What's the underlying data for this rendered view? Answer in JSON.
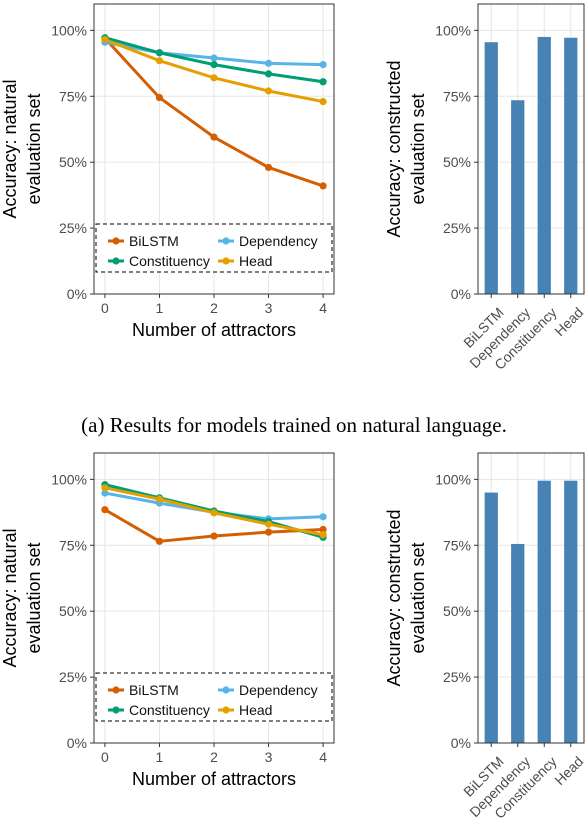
{
  "captions": {
    "a": "(a) Results for models trained on natural language."
  },
  "colors": {
    "BiLSTM": "#D55E00",
    "Dependency": "#56B4E9",
    "Constituency": "#009E73",
    "Head": "#E69F00",
    "bar": "#4682B4"
  },
  "chart_data": [
    {
      "type": "line",
      "panel": "a-left",
      "xlabel": "Number of attractors",
      "ylabel_lines": [
        "Accuracy: natural",
        "evaluation set"
      ],
      "x": [
        0,
        1,
        2,
        3,
        4
      ],
      "xlim": [
        -0.2,
        4.2
      ],
      "ylim": [
        0,
        1.1
      ],
      "yticks": [
        0,
        0.25,
        0.5,
        0.75,
        1.0
      ],
      "ytick_labels": [
        "0%",
        "25%",
        "50%",
        "75%",
        "100%"
      ],
      "xtick_labels": [
        "0",
        "1",
        "2",
        "3",
        "4"
      ],
      "grid": true,
      "legend_placement": "bottom, inside plot, dashed box, 2 columns",
      "series": [
        {
          "name": "BiLSTM",
          "values": [
            0.97,
            0.745,
            0.595,
            0.48,
            0.41
          ]
        },
        {
          "name": "Dependency",
          "values": [
            0.955,
            0.915,
            0.895,
            0.875,
            0.87
          ]
        },
        {
          "name": "Constituency",
          "values": [
            0.972,
            0.915,
            0.87,
            0.835,
            0.805
          ]
        },
        {
          "name": "Head",
          "values": [
            0.965,
            0.885,
            0.82,
            0.77,
            0.73
          ]
        }
      ]
    },
    {
      "type": "bar",
      "panel": "a-right",
      "ylabel_lines": [
        "Accuracy: constructed",
        "evaluation set"
      ],
      "categories": [
        "BiLSTM",
        "Dependency",
        "Constituency",
        "Head"
      ],
      "values": [
        0.955,
        0.735,
        0.975,
        0.972
      ],
      "ylim": [
        0,
        1.1
      ],
      "yticks": [
        0,
        0.25,
        0.5,
        0.75,
        1.0
      ],
      "ytick_labels": [
        "0%",
        "25%",
        "50%",
        "75%",
        "100%"
      ],
      "grid": true
    },
    {
      "type": "line",
      "panel": "b-left",
      "xlabel": "Number of attractors",
      "ylabel_lines": [
        "Accuracy: natural",
        "evaluation set"
      ],
      "x": [
        0,
        1,
        2,
        3,
        4
      ],
      "xlim": [
        -0.2,
        4.2
      ],
      "ylim": [
        0,
        1.1
      ],
      "yticks": [
        0,
        0.25,
        0.5,
        0.75,
        1.0
      ],
      "ytick_labels": [
        "0%",
        "25%",
        "50%",
        "75%",
        "100%"
      ],
      "xtick_labels": [
        "0",
        "1",
        "2",
        "3",
        "4"
      ],
      "grid": true,
      "legend_placement": "bottom, inside plot, dashed box, 2 columns",
      "series": [
        {
          "name": "BiLSTM",
          "values": [
            0.885,
            0.765,
            0.785,
            0.8,
            0.81
          ]
        },
        {
          "name": "Dependency",
          "values": [
            0.948,
            0.91,
            0.875,
            0.85,
            0.858
          ]
        },
        {
          "name": "Constituency",
          "values": [
            0.98,
            0.93,
            0.88,
            0.84,
            0.78
          ]
        },
        {
          "name": "Head",
          "values": [
            0.968,
            0.925,
            0.873,
            0.83,
            0.79
          ]
        }
      ]
    },
    {
      "type": "bar",
      "panel": "b-right",
      "ylabel_lines": [
        "Accuracy: constructed",
        "evaluation set"
      ],
      "categories": [
        "BiLSTM",
        "Dependency",
        "Constituency",
        "Head"
      ],
      "values": [
        0.95,
        0.755,
        0.995,
        0.995
      ],
      "ylim": [
        0,
        1.1
      ],
      "yticks": [
        0,
        0.25,
        0.5,
        0.75,
        1.0
      ],
      "ytick_labels": [
        "0%",
        "25%",
        "50%",
        "75%",
        "100%"
      ],
      "grid": true
    }
  ]
}
